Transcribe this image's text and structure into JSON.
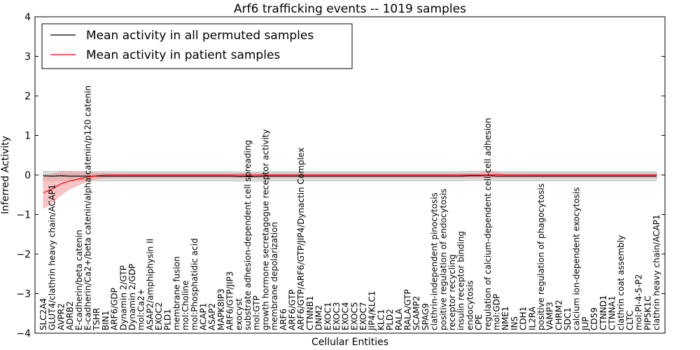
{
  "chart_data": {
    "type": "line",
    "title": "Arf6 trafficking events -- 1019 samples",
    "xlabel": "Cellular Entities",
    "ylabel": "Inferred Activity",
    "ylim": [
      -4,
      4
    ],
    "yticks": [
      -4,
      -3,
      -2,
      -1,
      0,
      1,
      2,
      3,
      4
    ],
    "ytick_labels": [
      "−4",
      "−3",
      "−2",
      "−1",
      "0",
      "1",
      "2",
      "3",
      "4"
    ],
    "legend_position": "upper-left",
    "categories": [
      "SLC2A4",
      "GLUT4/clathrin heavy chain/ACAP1",
      "AVPR2",
      "ADRB2",
      "E-cadherin/beta catenin",
      "E-cadherin/Ca2+/beta catenin/alpha catenin/p120 catenin",
      "TSHR",
      "BIN1",
      "ARF6/GDP",
      "Dynamin 2/GTP",
      "Dynamin 2/GDP",
      "mol:Ca2+",
      "ASAP2/amphiphysin II",
      "EXOC2",
      "PLD1",
      "membrane fusion",
      "mol:Choline",
      "mol:Phosphatidic acid",
      "ACAP1",
      "ASAP2",
      "MAPK8IP3",
      "ARF6/GTP/JIP3",
      "exocyst",
      "substrate adhesion-dependent cell spreading",
      "mol:GTP",
      "growth hormone secretagogue receptor activity",
      "membrane depolarization",
      "ARF6",
      "ARF6/GTP",
      "ARF6/GTP/ARF6/GTP/JIP4/Dynactin Complex",
      "CTNNB1",
      "DNM2",
      "EXOC1",
      "EXOC3",
      "EXOC4",
      "EXOC5",
      "EXOC7",
      "JIP4/KLC1",
      "KLC1",
      "PLD2",
      "RALA",
      "RALA/GTP",
      "SCAMP2",
      "SPAG9",
      "clathrin-independent pinocytosis",
      "positive regulation of endocytosis",
      "receptor recycling",
      "insulin receptor binding",
      "endocytosis",
      "CPE",
      "regulation of calcium-dependent cell-cell adhesion",
      "mol:GDP",
      "NME1",
      "INS",
      "CDH1",
      "IL2RA",
      "positive regulation of phagocytosis",
      "VAMP3",
      "CHRM2",
      "SDC1",
      "calcium ion-dependent exocytosis",
      "JUP",
      "CD59",
      "CTNND1",
      "CTNNA1",
      "clathrin coat assembly",
      "CLTC",
      "mol:PI-4-5-P2",
      "PIP5K1C",
      "clathrin heavy chain/ACAP1"
    ],
    "series": [
      {
        "name": "Mean activity in all permuted samples",
        "color": "#000000",
        "values": [
          -0.02,
          -0.03,
          -0.02,
          -0.03,
          -0.03,
          -0.03,
          -0.03,
          -0.03,
          -0.03,
          -0.03,
          -0.03,
          -0.03,
          -0.03,
          -0.03,
          -0.03,
          -0.03,
          -0.03,
          -0.03,
          -0.03,
          -0.03,
          -0.03,
          -0.03,
          -0.04,
          -0.04,
          -0.04,
          -0.03,
          -0.03,
          -0.03,
          -0.03,
          -0.03,
          -0.03,
          -0.03,
          -0.03,
          -0.03,
          -0.03,
          -0.03,
          -0.03,
          -0.03,
          -0.03,
          -0.03,
          -0.03,
          -0.03,
          -0.03,
          -0.03,
          -0.03,
          -0.03,
          -0.03,
          -0.03,
          -0.02,
          -0.02,
          -0.01,
          -0.03,
          -0.03,
          -0.03,
          -0.03,
          -0.03,
          -0.03,
          -0.03,
          -0.03,
          -0.03,
          -0.03,
          -0.03,
          -0.03,
          -0.03,
          -0.03,
          -0.03,
          -0.03,
          -0.03,
          -0.03,
          -0.03
        ],
        "band": 0.12,
        "band_color": "#bbbbbb"
      },
      {
        "name": "Mean activity in patient samples",
        "color": "#ff0000",
        "values": [
          -0.45,
          -0.35,
          -0.22,
          -0.15,
          -0.1,
          -0.05,
          -0.02,
          0.0,
          0.0,
          0.0,
          0.0,
          0.0,
          0.0,
          0.0,
          0.0,
          0.0,
          0.0,
          0.0,
          0.0,
          0.0,
          0.0,
          0.0,
          0.0,
          0.0,
          0.0,
          0.0,
          0.0,
          0.0,
          0.0,
          0.0,
          0.0,
          0.0,
          0.0,
          0.0,
          0.0,
          0.0,
          0.0,
          0.0,
          0.0,
          0.0,
          0.0,
          0.0,
          0.0,
          0.0,
          0.0,
          0.0,
          0.0,
          0.0,
          0.0,
          0.0,
          0.0,
          0.01,
          0.0,
          0.0,
          0.0,
          0.0,
          0.0,
          0.0,
          0.0,
          0.0,
          0.0,
          0.0,
          0.0,
          0.0,
          0.0,
          0.0,
          0.0,
          0.0,
          0.0,
          0.0
        ],
        "band_upper": [
          -0.05,
          0.02,
          0.08,
          0.1,
          0.08,
          0.06,
          0.05,
          0.05,
          0.04,
          0.04,
          0.04,
          0.04,
          0.04,
          0.04,
          0.04,
          0.04,
          0.04,
          0.04,
          0.04,
          0.04,
          0.04,
          0.04,
          0.04,
          0.04,
          0.04,
          0.04,
          0.04,
          0.04,
          0.04,
          0.04,
          0.04,
          0.04,
          0.04,
          0.04,
          0.04,
          0.04,
          0.04,
          0.04,
          0.04,
          0.04,
          0.04,
          0.04,
          0.04,
          0.04,
          0.04,
          0.04,
          0.04,
          0.04,
          0.04,
          0.05,
          0.08,
          0.06,
          0.04,
          0.04,
          0.04,
          0.04,
          0.04,
          0.04,
          0.04,
          0.04,
          0.04,
          0.04,
          0.04,
          0.04,
          0.04,
          0.04,
          0.04,
          0.04,
          0.04,
          0.04
        ],
        "band_lower": [
          -0.85,
          -0.7,
          -0.5,
          -0.35,
          -0.25,
          -0.15,
          -0.09,
          -0.07,
          -0.06,
          -0.06,
          -0.06,
          -0.06,
          -0.06,
          -0.06,
          -0.06,
          -0.06,
          -0.06,
          -0.06,
          -0.06,
          -0.06,
          -0.06,
          -0.06,
          -0.06,
          -0.06,
          -0.06,
          -0.06,
          -0.06,
          -0.06,
          -0.06,
          -0.06,
          -0.06,
          -0.06,
          -0.06,
          -0.06,
          -0.06,
          -0.06,
          -0.06,
          -0.06,
          -0.06,
          -0.06,
          -0.06,
          -0.06,
          -0.06,
          -0.06,
          -0.06,
          -0.06,
          -0.06,
          -0.06,
          -0.06,
          -0.06,
          -0.07,
          -0.06,
          -0.06,
          -0.06,
          -0.06,
          -0.06,
          -0.06,
          -0.06,
          -0.06,
          -0.06,
          -0.06,
          -0.06,
          -0.06,
          -0.06,
          -0.06,
          -0.06,
          -0.06,
          -0.06,
          -0.06,
          -0.06
        ],
        "band_color": "#f4a0a0"
      }
    ]
  }
}
